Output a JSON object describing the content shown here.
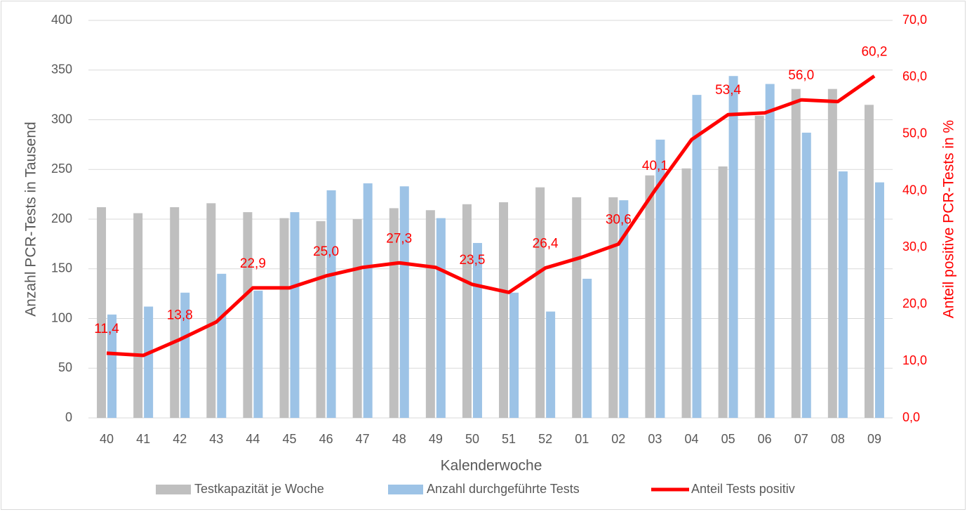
{
  "chart_data": {
    "type": "bar_line",
    "x_label": "Kalenderwoche",
    "y_label": "Anzahl PCR-Tests in Tausend",
    "y2_label": "Anteil positive PCR-Tests in %",
    "categories": [
      "40",
      "41",
      "42",
      "43",
      "44",
      "45",
      "46",
      "47",
      "48",
      "49",
      "50",
      "51",
      "52",
      "01",
      "02",
      "03",
      "04",
      "05",
      "06",
      "07",
      "08",
      "09"
    ],
    "series": [
      {
        "name": "Testkapazität je Woche",
        "type": "bar",
        "color": "#bfbfbf",
        "values": [
          212,
          206,
          212,
          216,
          207,
          201,
          198,
          200,
          211,
          209,
          215,
          217,
          232,
          222,
          222,
          244,
          251,
          253,
          304,
          331,
          331,
          315
        ]
      },
      {
        "name": "Anzahl durchgeführte Tests",
        "type": "bar",
        "color": "#9dc3e6",
        "values": [
          104,
          112,
          126,
          145,
          128,
          207,
          229,
          236,
          233,
          201,
          176,
          126,
          107,
          140,
          219,
          280,
          325,
          344,
          336,
          287,
          248,
          237
        ]
      },
      {
        "name": "Anteil Tests positiv",
        "type": "line",
        "axis": "y2",
        "color": "#ff0000",
        "values": [
          11.4,
          11.0,
          13.8,
          16.9,
          22.9,
          22.9,
          25.0,
          26.5,
          27.3,
          26.5,
          23.5,
          22.1,
          26.4,
          28.3,
          30.6,
          40.1,
          49.0,
          53.4,
          53.7,
          56.0,
          55.7,
          60.2
        ],
        "value_labels": [
          "11,4",
          null,
          "13,8",
          null,
          "22,9",
          null,
          "25,0",
          null,
          "27,3",
          null,
          "23,5",
          null,
          "26,4",
          null,
          "30,6",
          "40,1",
          null,
          "53,4",
          null,
          "56,0",
          null,
          "60,2"
        ]
      }
    ],
    "ylim": [
      0,
      400
    ],
    "yticks": [
      0,
      50,
      100,
      150,
      200,
      250,
      300,
      350,
      400
    ],
    "y2lim": [
      0,
      70
    ],
    "y2ticks": [
      {
        "value": 0,
        "label": "0,0"
      },
      {
        "value": 10,
        "label": "10,0"
      },
      {
        "value": 20,
        "label": "20,0"
      },
      {
        "value": 30,
        "label": "30,0"
      },
      {
        "value": 40,
        "label": "40,0"
      },
      {
        "value": 50,
        "label": "50,0"
      },
      {
        "value": 60,
        "label": "60,0"
      },
      {
        "value": 70,
        "label": "70,0"
      }
    ],
    "grid": true,
    "legend": "bottom"
  }
}
